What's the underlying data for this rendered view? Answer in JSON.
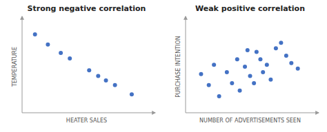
{
  "chart_data": [
    {
      "type": "scatter",
      "title": "Strong negative correlation",
      "x_label": "HEATER SALES",
      "y_label": "TEMPERATURE",
      "color": "#4472C4",
      "x": [
        0.1,
        0.2,
        0.3,
        0.37,
        0.52,
        0.59,
        0.65,
        0.72,
        0.85
      ],
      "y": [
        0.85,
        0.74,
        0.65,
        0.59,
        0.46,
        0.4,
        0.35,
        0.3,
        0.2
      ],
      "xlim": [
        0,
        1
      ],
      "ylim": [
        0,
        1
      ],
      "xticks": [],
      "yticks": [],
      "tick_labels": false,
      "grid": false
    },
    {
      "type": "scatter",
      "title": "Weak positive correlation",
      "x_label": "NUMBER OF ADVERTISEMENTS SEEN",
      "y_label": "PURCHASE INTENTION",
      "color": "#4472C4",
      "x": [
        0.12,
        0.18,
        0.22,
        0.26,
        0.32,
        0.36,
        0.4,
        0.42,
        0.46,
        0.48,
        0.5,
        0.53,
        0.55,
        0.58,
        0.6,
        0.63,
        0.66,
        0.7,
        0.74,
        0.78,
        0.82,
        0.87
      ],
      "y": [
        0.42,
        0.3,
        0.52,
        0.18,
        0.44,
        0.32,
        0.58,
        0.24,
        0.5,
        0.68,
        0.4,
        0.32,
        0.66,
        0.58,
        0.44,
        0.52,
        0.36,
        0.7,
        0.76,
        0.62,
        0.54,
        0.48
      ],
      "xlim": [
        0,
        1
      ],
      "ylim": [
        0,
        1
      ],
      "xticks": [],
      "yticks": [],
      "tick_labels": false,
      "grid": false
    }
  ]
}
